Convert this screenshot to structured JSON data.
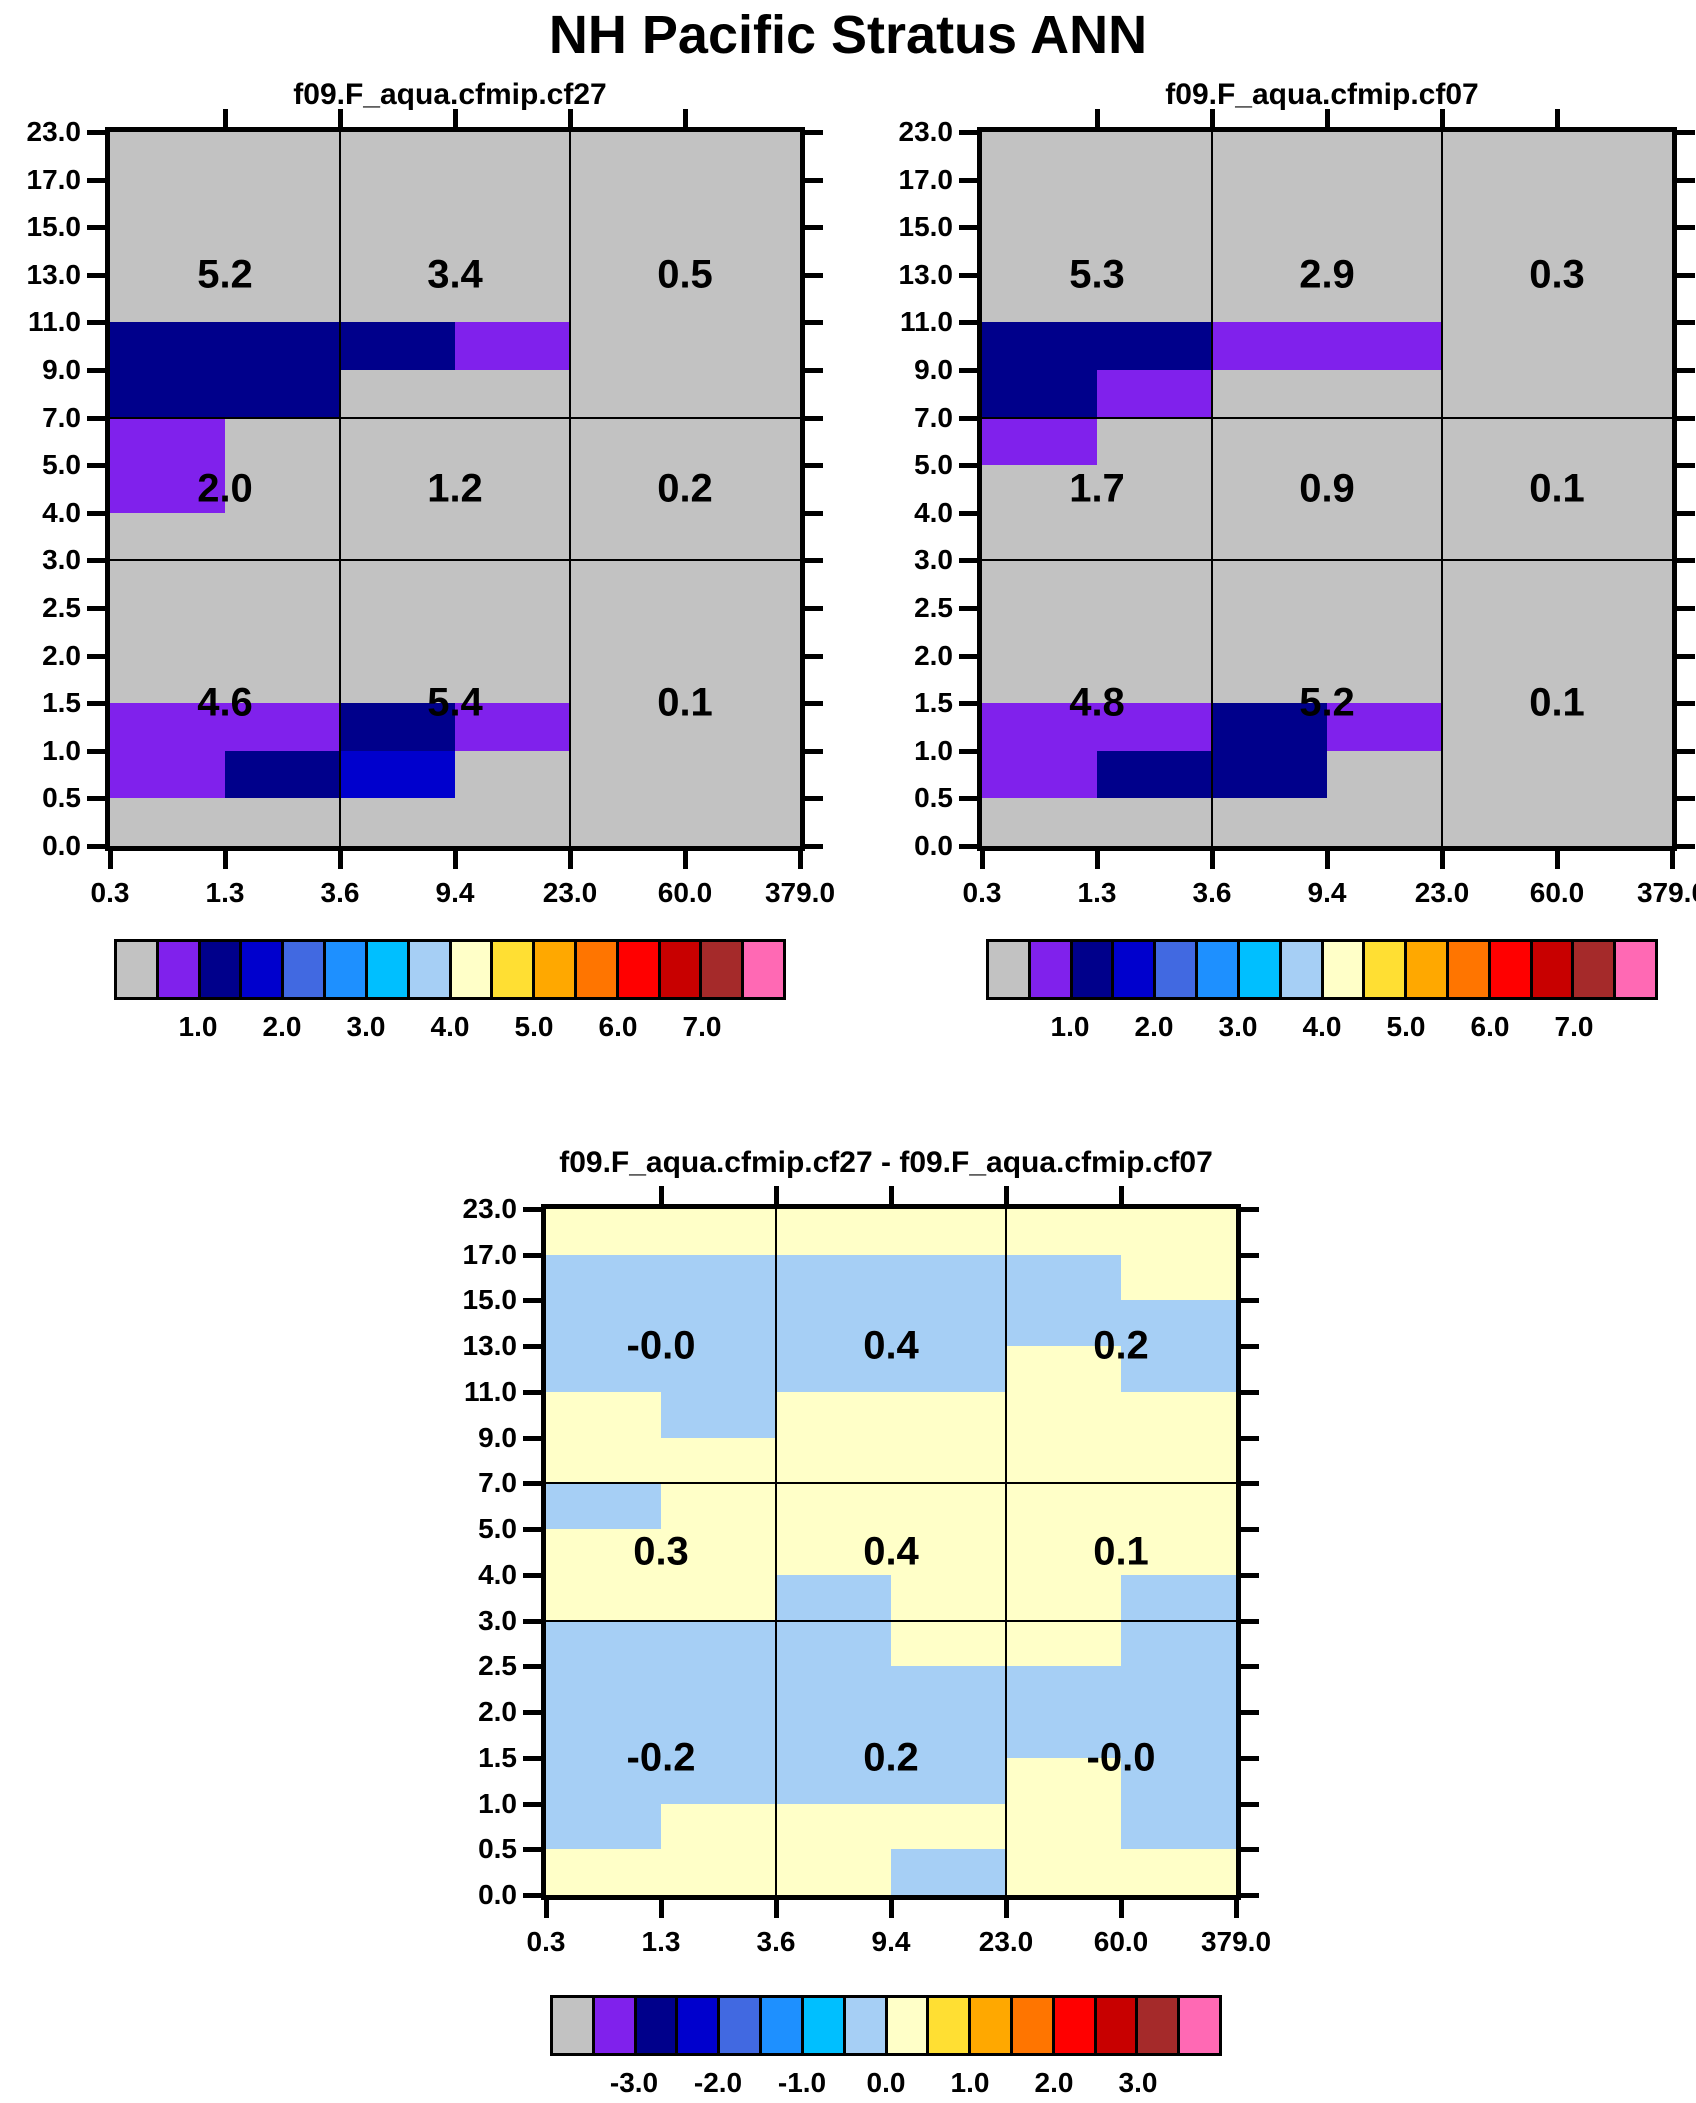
{
  "title": "NH Pacific Stratus ANN",
  "axes": {
    "x_tick_labels": [
      "0.3",
      "1.3",
      "3.6",
      "9.4",
      "23.0",
      "60.0",
      "379.0"
    ],
    "y_tick_labels": [
      "23.0",
      "17.0",
      "15.0",
      "13.0",
      "11.0",
      "9.0",
      "7.0",
      "5.0",
      "4.0",
      "3.0",
      "2.5",
      "2.0",
      "1.5",
      "1.0",
      "0.5",
      "0.0"
    ]
  },
  "palette": {
    "G": "#C2C2C2",
    "P": "#8021EC",
    "N": "#00008B",
    "B": "#0000CD",
    "L": "#A6CFF5",
    "Y": "#FFFFC8"
  },
  "colorbar": {
    "segment_colors": [
      "#C2C2C2",
      "#8021EC",
      "#00008B",
      "#0000CD",
      "#4169E1",
      "#1E90FF",
      "#00BFFF",
      "#A6CFF5",
      "#FFFFC8",
      "#FFDF33",
      "#FFA800",
      "#FF7500",
      "#FF0000",
      "#C80000",
      "#A52A2A",
      "#FF69B4"
    ],
    "top_labels": [
      "1.0",
      "2.0",
      "3.0",
      "4.0",
      "5.0",
      "6.0",
      "7.0"
    ],
    "diff_labels": [
      "-3.0",
      "-2.0",
      "-1.0",
      "0.0",
      "1.0",
      "2.0",
      "3.0"
    ]
  },
  "panels": [
    {
      "id": "cf27",
      "title": "f09.F_aqua.cfmip.cf27",
      "sector_values": [
        [
          "5.2",
          "3.4",
          "0.5"
        ],
        [
          "2.0",
          "1.2",
          "0.2"
        ],
        [
          "4.6",
          "5.4",
          "0.1"
        ]
      ],
      "grid_rows_top_to_bottom": [
        "GGGGGG",
        "GGGGGG",
        "GGGGGG",
        "GGGGGG",
        "NNNPGG",
        "NNGGGG",
        "PGGGGG",
        "PGGGGG",
        "GGGGGG",
        "GGGGGG",
        "GGGGGG",
        "GGGGGG",
        "PPNPGG",
        "PNBGGG",
        "GGGGGG"
      ],
      "colorbar_labels_key": "top_labels"
    },
    {
      "id": "cf07",
      "title": "f09.F_aqua.cfmip.cf07",
      "sector_values": [
        [
          "5.3",
          "2.9",
          "0.3"
        ],
        [
          "1.7",
          "0.9",
          "0.1"
        ],
        [
          "4.8",
          "5.2",
          "0.1"
        ]
      ],
      "grid_rows_top_to_bottom": [
        "GGGGGG",
        "GGGGGG",
        "GGGGGG",
        "GGGGGG",
        "NNPPGG",
        "NPGGGG",
        "PGGGGG",
        "GGGGGG",
        "GGGGGG",
        "GGGGGG",
        "GGGGGG",
        "GGGGGG",
        "PPNPGG",
        "PNNGGG",
        "GGGGGG"
      ],
      "colorbar_labels_key": "top_labels"
    },
    {
      "id": "diff",
      "title": "f09.F_aqua.cfmip.cf27 - f09.F_aqua.cfmip.cf07",
      "sector_values": [
        [
          "-0.0",
          "0.4",
          "0.2"
        ],
        [
          "0.3",
          "0.4",
          "0.1"
        ],
        [
          "-0.2",
          "0.2",
          "-0.0"
        ]
      ],
      "grid_rows_top_to_bottom": [
        "YYYYYY",
        "LLLLLY",
        "LLLLLL",
        "LLLLYL",
        "YLYYYY",
        "YYYYYY",
        "LYYYYY",
        "YYYYYY",
        "YYLYYL",
        "LLLYYL",
        "LLLLLL",
        "LLLLLL",
        "LLLLYL",
        "LYYYYL",
        "YYYLYY"
      ],
      "colorbar_labels_key": "diff_labels"
    }
  ],
  "chart_data": [
    {
      "type": "heatmap",
      "title": "f09.F_aqua.cfmip.cf27",
      "x_bin_edges": [
        0.3,
        1.3,
        3.6,
        9.4,
        23.0,
        60.0,
        379.0
      ],
      "y_bin_edges": [
        0.0,
        0.5,
        1.0,
        1.5,
        2.0,
        2.5,
        3.0,
        4.0,
        5.0,
        7.0,
        9.0,
        11.0,
        13.0,
        15.0,
        17.0,
        23.0
      ],
      "cell_color_classes_rows_top_to_bottom": [
        "GGGGGG",
        "GGGGGG",
        "GGGGGG",
        "GGGGGG",
        "NNNPGG",
        "NNGGGG",
        "PGGGGG",
        "PGGGGG",
        "GGGGGG",
        "GGGGGG",
        "GGGGGG",
        "GGGGGG",
        "PPNPGG",
        "PNBGGG",
        "GGGGGG"
      ],
      "color_class_value_ranges": {
        "G": "< 0.5",
        "P": "0.5-1.0",
        "N": "1.0-1.5",
        "B": "1.5-2.0"
      },
      "sector_totals": {
        "row_bands": [
          "23.0-7.0",
          "7.0-3.0",
          "3.0-0.0"
        ],
        "col_bands": [
          "0.3-3.6",
          "3.6-23.0",
          "23.0-379.0"
        ],
        "values": [
          [
            5.2,
            3.4,
            0.5
          ],
          [
            2.0,
            1.2,
            0.2
          ],
          [
            4.6,
            5.4,
            0.1
          ]
        ]
      },
      "legend_position": "bottom",
      "grid": "sector dividers at x=3.6,23.0 and y=7.0,3.0"
    },
    {
      "type": "heatmap",
      "title": "f09.F_aqua.cfmip.cf07",
      "x_bin_edges": [
        0.3,
        1.3,
        3.6,
        9.4,
        23.0,
        60.0,
        379.0
      ],
      "y_bin_edges": [
        0.0,
        0.5,
        1.0,
        1.5,
        2.0,
        2.5,
        3.0,
        4.0,
        5.0,
        7.0,
        9.0,
        11.0,
        13.0,
        15.0,
        17.0,
        23.0
      ],
      "cell_color_classes_rows_top_to_bottom": [
        "GGGGGG",
        "GGGGGG",
        "GGGGGG",
        "GGGGGG",
        "NNPPGG",
        "NPGGGG",
        "PGGGGG",
        "GGGGGG",
        "GGGGGG",
        "GGGGGG",
        "GGGGGG",
        "GGGGGG",
        "PPNPGG",
        "PNNGGG",
        "GGGGGG"
      ],
      "color_class_value_ranges": {
        "G": "< 0.5",
        "P": "0.5-1.0",
        "N": "1.0-1.5",
        "B": "1.5-2.0"
      },
      "sector_totals": {
        "row_bands": [
          "23.0-7.0",
          "7.0-3.0",
          "3.0-0.0"
        ],
        "col_bands": [
          "0.3-3.6",
          "3.6-23.0",
          "23.0-379.0"
        ],
        "values": [
          [
            5.3,
            2.9,
            0.3
          ],
          [
            1.7,
            0.9,
            0.1
          ],
          [
            4.8,
            5.2,
            0.1
          ]
        ]
      },
      "legend_position": "bottom",
      "grid": "sector dividers at x=3.6,23.0 and y=7.0,3.0"
    },
    {
      "type": "heatmap",
      "title": "f09.F_aqua.cfmip.cf27 - f09.F_aqua.cfmip.cf07",
      "x_bin_edges": [
        0.3,
        1.3,
        3.6,
        9.4,
        23.0,
        60.0,
        379.0
      ],
      "y_bin_edges": [
        0.0,
        0.5,
        1.0,
        1.5,
        2.0,
        2.5,
        3.0,
        4.0,
        5.0,
        7.0,
        9.0,
        11.0,
        13.0,
        15.0,
        17.0,
        23.0
      ],
      "cell_color_classes_rows_top_to_bottom": [
        "YYYYYY",
        "LLLLLY",
        "LLLLLL",
        "LLLLYL",
        "YLYYYY",
        "YYYYYY",
        "LYYYYY",
        "YYYYYY",
        "YYLYYL",
        "LLLYYL",
        "LLLLLL",
        "LLLLLL",
        "LLLLYL",
        "LYYYYL",
        "YYYLYY"
      ],
      "color_class_value_ranges": {
        "L": "-0.5-0.0",
        "Y": "0.0-0.5"
      },
      "sector_totals": {
        "row_bands": [
          "23.0-7.0",
          "7.0-3.0",
          "3.0-0.0"
        ],
        "col_bands": [
          "0.3-3.6",
          "3.6-23.0",
          "23.0-379.0"
        ],
        "values": [
          [
            -0.0,
            0.4,
            0.2
          ],
          [
            0.3,
            0.4,
            0.1
          ],
          [
            -0.2,
            0.2,
            -0.0
          ]
        ]
      },
      "legend_position": "bottom",
      "grid": "sector dividers at x=3.6,23.0 and y=7.0,3.0"
    }
  ]
}
